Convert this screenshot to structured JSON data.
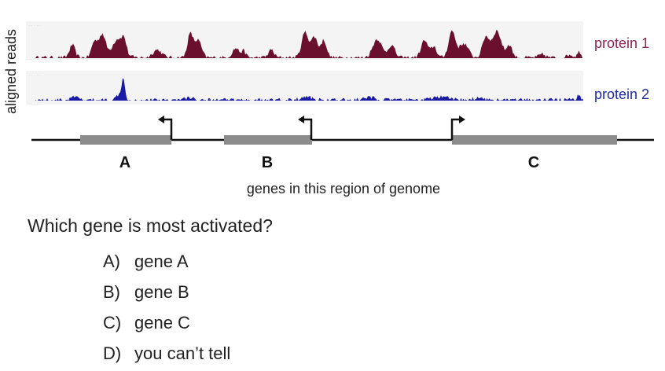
{
  "figure": {
    "y_axis_label": "aligned reads",
    "tracks": [
      {
        "label": "protein 1",
        "color": "#6b0f2e",
        "label_color": "#8c2453"
      },
      {
        "label": "protein 2",
        "color": "#1a1aa6",
        "label_color": "#1f2aa8"
      }
    ],
    "genes": [
      {
        "letter": "A",
        "strand": "minus"
      },
      {
        "letter": "B",
        "strand": "minus"
      },
      {
        "letter": "C",
        "strand": "plus"
      }
    ],
    "gene_block_color": "#8c8c8c",
    "x_caption": "genes in this region of genome"
  },
  "question": {
    "text": "Which gene is most activated?",
    "options": [
      {
        "letter": "A)",
        "text": "gene A"
      },
      {
        "letter": "B)",
        "text": "gene B"
      },
      {
        "letter": "C)",
        "text": "gene C"
      },
      {
        "letter": "D)",
        "text": "you can’t tell"
      }
    ]
  }
}
